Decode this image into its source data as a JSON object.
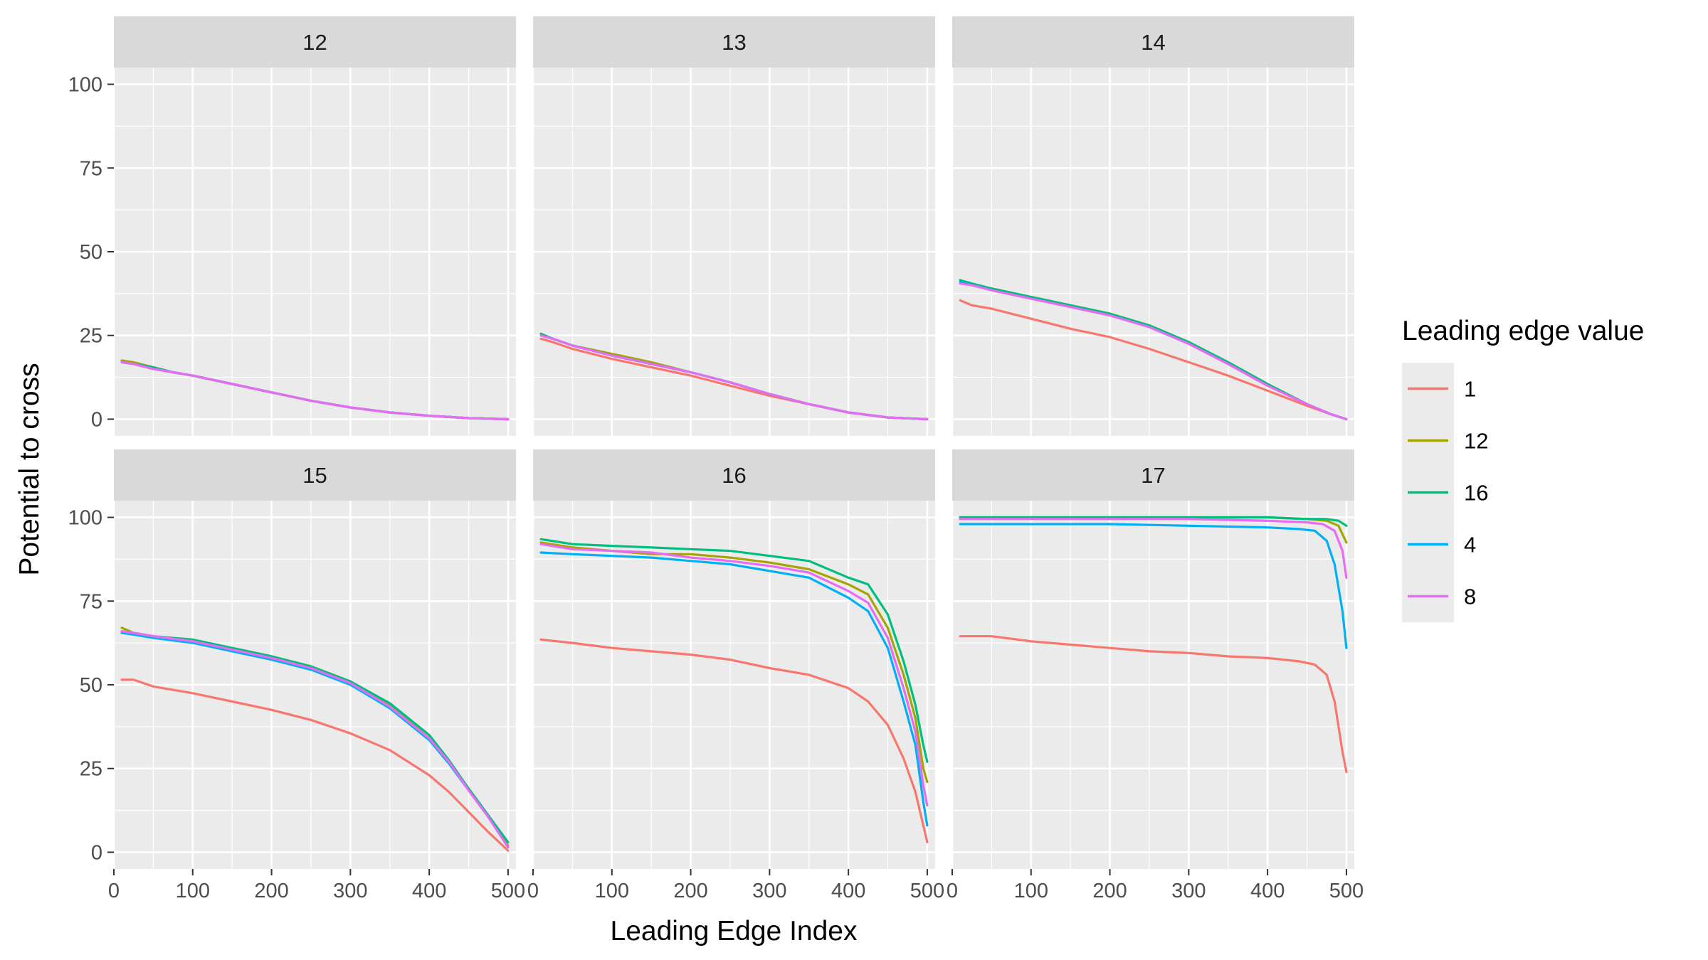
{
  "chart_data": {
    "type": "line",
    "facet_by": "panel",
    "xlabel": "Leading Edge Index",
    "ylabel": "Potential to cross",
    "xlim": [
      0,
      510
    ],
    "ylim": [
      -5,
      105
    ],
    "x_ticks": [
      0,
      100,
      200,
      300,
      400,
      500
    ],
    "y_ticks": [
      0,
      25,
      50,
      75,
      100
    ],
    "grid": true,
    "legend": {
      "title": "Leading edge value",
      "position": "right",
      "entries": [
        {
          "label": "1",
          "color": "#F8766D"
        },
        {
          "label": "12",
          "color": "#A3A500"
        },
        {
          "label": "16",
          "color": "#00BF7D"
        },
        {
          "label": "4",
          "color": "#00B0F6"
        },
        {
          "label": "8",
          "color": "#E76BF3"
        }
      ]
    },
    "panels": [
      {
        "label": "12",
        "series": [
          {
            "name": "1",
            "x": [
              10,
              25,
              50,
              75,
              100,
              150,
              200,
              250,
              300,
              350,
              400,
              450,
              500
            ],
            "y": [
              17,
              16.5,
              15,
              14,
              13,
              10.5,
              8,
              5.5,
              3.5,
              2,
              1,
              0.3,
              0
            ]
          },
          {
            "name": "12",
            "x": [
              10,
              25,
              50,
              75,
              100,
              150,
              200,
              250,
              300,
              350,
              400,
              450,
              500
            ],
            "y": [
              17.5,
              17,
              15.5,
              14,
              13,
              10.5,
              8,
              5.5,
              3.5,
              2,
              1,
              0.3,
              0
            ]
          },
          {
            "name": "16",
            "x": [
              10,
              25,
              50,
              75,
              100,
              150,
              200,
              250,
              300,
              350,
              400,
              450,
              500
            ],
            "y": [
              17,
              16.5,
              15.5,
              14,
              13,
              10.5,
              8,
              5.5,
              3.5,
              2,
              1,
              0.3,
              0
            ]
          },
          {
            "name": "4",
            "x": [
              10,
              25,
              50,
              75,
              100,
              150,
              200,
              250,
              300,
              350,
              400,
              450,
              500
            ],
            "y": [
              17,
              16.5,
              15,
              14,
              13,
              10.5,
              8,
              5.5,
              3.5,
              2,
              1,
              0.3,
              0
            ]
          },
          {
            "name": "8",
            "x": [
              10,
              25,
              50,
              75,
              100,
              150,
              200,
              250,
              300,
              350,
              400,
              450,
              500
            ],
            "y": [
              17,
              16.5,
              15,
              14,
              13,
              10.5,
              8,
              5.5,
              3.5,
              2,
              1,
              0.3,
              0
            ]
          }
        ]
      },
      {
        "label": "13",
        "series": [
          {
            "name": "1",
            "x": [
              10,
              25,
              50,
              100,
              150,
              200,
              250,
              300,
              350,
              400,
              450,
              500
            ],
            "y": [
              24,
              23,
              21,
              18,
              15.5,
              13,
              10,
              7,
              4.5,
              2,
              0.5,
              0
            ]
          },
          {
            "name": "12",
            "x": [
              10,
              25,
              50,
              100,
              150,
              200,
              250,
              300,
              350,
              400,
              450,
              500
            ],
            "y": [
              25.5,
              24,
              22,
              19.5,
              17,
              14,
              11,
              7.5,
              4.5,
              2,
              0.5,
              0
            ]
          },
          {
            "name": "16",
            "x": [
              10,
              25,
              50,
              100,
              150,
              200,
              250,
              300,
              350,
              400,
              450,
              500
            ],
            "y": [
              25.5,
              24,
              22,
              19,
              16.5,
              14,
              11,
              7.5,
              4.5,
              2,
              0.5,
              0
            ]
          },
          {
            "name": "4",
            "x": [
              10,
              25,
              50,
              100,
              150,
              200,
              250,
              300,
              350,
              400,
              450,
              500
            ],
            "y": [
              25,
              24,
              22,
              19,
              16.5,
              14,
              11,
              7.5,
              4.5,
              2,
              0.5,
              0
            ]
          },
          {
            "name": "8",
            "x": [
              10,
              25,
              50,
              100,
              150,
              200,
              250,
              300,
              350,
              400,
              450,
              500
            ],
            "y": [
              25,
              24,
              22,
              19,
              16.5,
              14,
              11,
              7.5,
              4.5,
              2,
              0.5,
              0
            ]
          }
        ]
      },
      {
        "label": "14",
        "series": [
          {
            "name": "1",
            "x": [
              10,
              25,
              50,
              100,
              150,
              200,
              250,
              300,
              350,
              400,
              450,
              480,
              500
            ],
            "y": [
              35.5,
              34,
              33,
              30,
              27,
              24.5,
              21,
              17,
              13,
              8.5,
              4,
              1.5,
              0
            ]
          },
          {
            "name": "12",
            "x": [
              10,
              25,
              50,
              100,
              150,
              200,
              250,
              300,
              350,
              400,
              450,
              480,
              500
            ],
            "y": [
              41.5,
              40,
              39,
              36.5,
              34,
              31.5,
              28,
              23,
              17,
              10.5,
              4.5,
              1.5,
              0
            ]
          },
          {
            "name": "16",
            "x": [
              10,
              25,
              50,
              100,
              150,
              200,
              250,
              300,
              350,
              400,
              450,
              480,
              500
            ],
            "y": [
              41.5,
              40.5,
              39,
              36.5,
              34,
              31.5,
              28,
              23,
              17,
              10.5,
              4.5,
              1.5,
              0
            ]
          },
          {
            "name": "4",
            "x": [
              10,
              25,
              50,
              100,
              150,
              200,
              250,
              300,
              350,
              400,
              450,
              480,
              500
            ],
            "y": [
              41,
              40,
              38.5,
              36,
              33.5,
              31,
              27.5,
              22.5,
              16.5,
              10,
              4.5,
              1.5,
              0
            ]
          },
          {
            "name": "8",
            "x": [
              10,
              25,
              50,
              100,
              150,
              200,
              250,
              300,
              350,
              400,
              450,
              480,
              500
            ],
            "y": [
              40.5,
              40,
              38.5,
              36,
              33.5,
              31,
              27.5,
              22.5,
              16.5,
              10,
              4.5,
              1.5,
              0
            ]
          }
        ]
      },
      {
        "label": "15",
        "series": [
          {
            "name": "1",
            "x": [
              10,
              25,
              50,
              100,
              150,
              200,
              250,
              300,
              350,
              400,
              425,
              450,
              475,
              500
            ],
            "y": [
              51.5,
              51.5,
              49.5,
              47.5,
              45,
              42.5,
              39.5,
              35.5,
              30.5,
              23,
              18,
              12,
              6,
              0.5
            ]
          },
          {
            "name": "12",
            "x": [
              10,
              25,
              50,
              100,
              150,
              200,
              250,
              300,
              350,
              400,
              425,
              450,
              475,
              500
            ],
            "y": [
              67,
              65.5,
              64.5,
              62.5,
              61,
              58.5,
              55.5,
              51,
              44,
              34,
              27,
              19,
              11,
              2
            ]
          },
          {
            "name": "16",
            "x": [
              10,
              25,
              50,
              100,
              150,
              200,
              250,
              300,
              350,
              400,
              425,
              450,
              475,
              500
            ],
            "y": [
              66,
              65.5,
              64.5,
              63.5,
              61,
              58.5,
              55.5,
              51,
              44.5,
              35,
              27.5,
              19,
              11,
              3
            ]
          },
          {
            "name": "4",
            "x": [
              10,
              25,
              50,
              100,
              150,
              200,
              250,
              300,
              350,
              400,
              425,
              450,
              475,
              500
            ],
            "y": [
              65.5,
              65,
              64,
              62.5,
              60,
              57.5,
              54.5,
              50,
              43,
              33.5,
              26.5,
              18.5,
              10.5,
              1.5
            ]
          },
          {
            "name": "8",
            "x": [
              10,
              25,
              50,
              100,
              150,
              200,
              250,
              300,
              350,
              400,
              425,
              450,
              475,
              500
            ],
            "y": [
              66,
              65.5,
              64.5,
              63,
              60.5,
              58,
              55,
              50.5,
              43.5,
              34,
              27,
              18.5,
              10.5,
              1.5
            ]
          }
        ]
      },
      {
        "label": "16",
        "series": [
          {
            "name": "1",
            "x": [
              10,
              50,
              100,
              150,
              200,
              250,
              300,
              350,
              400,
              425,
              450,
              470,
              485,
              495,
              500
            ],
            "y": [
              63.5,
              62.5,
              61,
              60,
              59,
              57.5,
              55,
              53,
              49,
              45,
              38,
              28,
              18,
              8,
              3
            ]
          },
          {
            "name": "12",
            "x": [
              10,
              50,
              100,
              150,
              200,
              250,
              300,
              350,
              400,
              425,
              450,
              470,
              485,
              495,
              500
            ],
            "y": [
              92.5,
              91,
              90,
              89,
              89,
              88,
              86.5,
              84.5,
              80,
              77,
              67,
              53,
              40,
              25,
              21
            ]
          },
          {
            "name": "16",
            "x": [
              10,
              50,
              100,
              150,
              200,
              250,
              300,
              350,
              400,
              425,
              450,
              470,
              485,
              495,
              500
            ],
            "y": [
              93.5,
              92,
              91.5,
              91,
              90.5,
              90,
              88.5,
              87,
              82,
              80,
              71,
              57,
              44,
              32,
              27
            ]
          },
          {
            "name": "4",
            "x": [
              10,
              50,
              100,
              150,
              200,
              250,
              300,
              350,
              400,
              425,
              450,
              470,
              485,
              495,
              500
            ],
            "y": [
              89.5,
              89,
              88.5,
              88,
              87,
              86,
              84,
              82,
              76,
              72,
              61,
              45,
              32,
              15,
              8
            ]
          },
          {
            "name": "8",
            "x": [
              10,
              50,
              100,
              150,
              200,
              250,
              300,
              350,
              400,
              425,
              450,
              470,
              485,
              495,
              500
            ],
            "y": [
              92,
              90.5,
              90,
              89.5,
              88,
              87,
              85.5,
              83.5,
              78,
              74.5,
              64,
              49,
              36,
              20,
              14
            ]
          }
        ]
      },
      {
        "label": "17",
        "series": [
          {
            "name": "1",
            "x": [
              10,
              50,
              100,
              150,
              200,
              250,
              300,
              350,
              400,
              440,
              460,
              475,
              485,
              495,
              500
            ],
            "y": [
              64.5,
              64.5,
              63,
              62,
              61,
              60,
              59.5,
              58.5,
              58,
              57,
              56,
              53,
              45,
              30,
              24
            ]
          },
          {
            "name": "12",
            "x": [
              10,
              100,
              200,
              300,
              400,
              450,
              475,
              490,
              500
            ],
            "y": [
              100,
              100,
              100,
              100,
              100,
              99.5,
              99,
              97.5,
              92.5
            ]
          },
          {
            "name": "16",
            "x": [
              10,
              100,
              200,
              300,
              400,
              450,
              475,
              490,
              500
            ],
            "y": [
              100,
              100,
              100,
              100,
              100,
              99.5,
              99.5,
              99,
              97.5
            ]
          },
          {
            "name": "4",
            "x": [
              10,
              100,
              200,
              300,
              400,
              440,
              460,
              475,
              485,
              495,
              500
            ],
            "y": [
              98,
              98,
              98,
              97.5,
              97,
              96.5,
              96,
              93,
              86,
              72,
              61
            ]
          },
          {
            "name": "8",
            "x": [
              10,
              100,
              200,
              300,
              400,
              450,
              470,
              485,
              495,
              500
            ],
            "y": [
              99.5,
              99.5,
              99.5,
              99.5,
              99,
              98.5,
              98,
              96,
              90,
              82
            ]
          }
        ]
      }
    ]
  }
}
